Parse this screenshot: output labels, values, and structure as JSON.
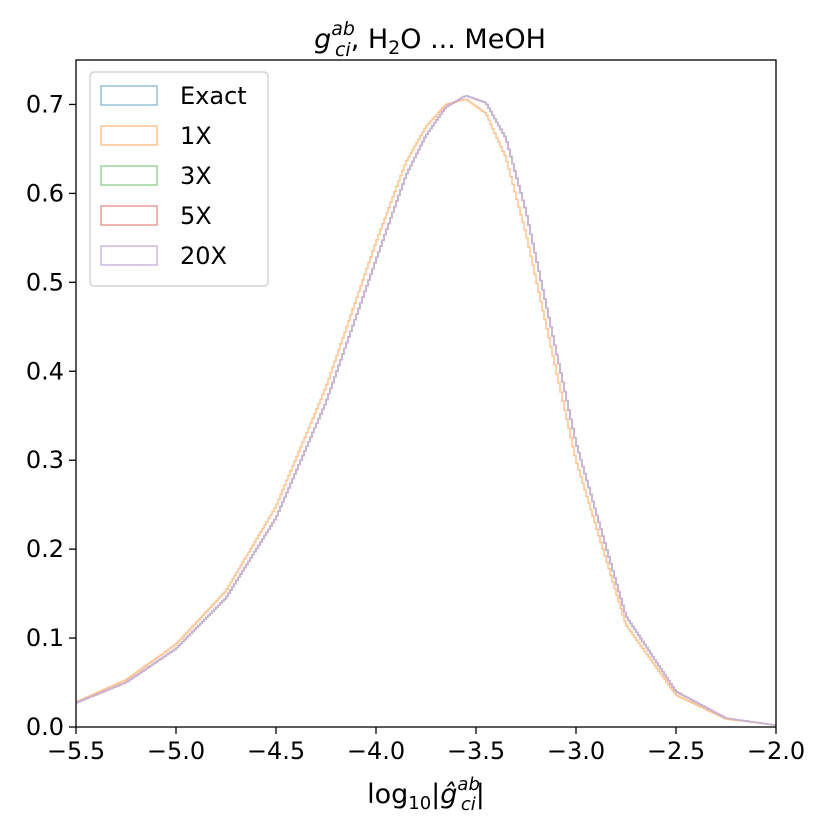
{
  "chart_data": {
    "type": "line",
    "style": "step-histogram",
    "title": {
      "main": "g",
      "main_sub": "ci",
      "main_sup": "ab",
      "rest_a": ", H",
      "rest_sub": "2",
      "rest_b": "O ... MeOH"
    },
    "xlabel": {
      "prefix": "log",
      "prefix_sub": "10",
      "bar_open": "|",
      "symbol": "ĝ",
      "symbol_sub": "ci",
      "symbol_sup": "ab",
      "bar_close": "|"
    },
    "ylabel": "",
    "xlim": [
      -5.5,
      -2.0
    ],
    "ylim": [
      0.0,
      0.75
    ],
    "xticks": [
      -5.5,
      -5.0,
      -4.5,
      -4.0,
      -3.5,
      -3.0,
      -2.5,
      -2.0
    ],
    "xtick_labels": [
      "−5.5",
      "−5.0",
      "−4.5",
      "−4.0",
      "−3.5",
      "−3.0",
      "−2.5",
      "−2.0"
    ],
    "yticks": [
      0.0,
      0.1,
      0.2,
      0.3,
      0.4,
      0.5,
      0.6,
      0.7
    ],
    "ytick_labels": [
      "0.0",
      "0.1",
      "0.2",
      "0.3",
      "0.4",
      "0.5",
      "0.6",
      "0.7"
    ],
    "grid": false,
    "legend_position": "top-left",
    "series": [
      {
        "name": "Exact",
        "color": "#8fbbd9",
        "x": [
          -5.5,
          -5.25,
          -5.0,
          -4.75,
          -4.5,
          -4.25,
          -4.0,
          -3.85,
          -3.75,
          -3.65,
          -3.55,
          -3.45,
          -3.35,
          -3.25,
          -3.0,
          -2.75,
          -2.5,
          -2.25,
          -2.0
        ],
        "y": [
          0.027,
          0.05,
          0.088,
          0.145,
          0.235,
          0.365,
          0.525,
          0.62,
          0.665,
          0.697,
          0.71,
          0.702,
          0.662,
          0.58,
          0.32,
          0.125,
          0.04,
          0.01,
          0.002
        ]
      },
      {
        "name": "1X",
        "color": "#ffbf86",
        "x": [
          -5.5,
          -5.25,
          -5.0,
          -4.75,
          -4.5,
          -4.25,
          -4.0,
          -3.85,
          -3.75,
          -3.65,
          -3.55,
          -3.45,
          -3.35,
          -3.25,
          -3.0,
          -2.75,
          -2.5,
          -2.25,
          -2.0
        ],
        "y": [
          0.028,
          0.053,
          0.093,
          0.153,
          0.248,
          0.382,
          0.545,
          0.635,
          0.675,
          0.7,
          0.706,
          0.69,
          0.64,
          0.555,
          0.3,
          0.115,
          0.036,
          0.009,
          0.002
        ]
      },
      {
        "name": "3X",
        "color": "#95cf95",
        "x": [
          -5.5,
          -5.25,
          -5.0,
          -4.75,
          -4.5,
          -4.25,
          -4.0,
          -3.85,
          -3.75,
          -3.65,
          -3.55,
          -3.45,
          -3.35,
          -3.25,
          -3.0,
          -2.75,
          -2.5,
          -2.25,
          -2.0
        ],
        "y": [
          0.027,
          0.05,
          0.088,
          0.145,
          0.235,
          0.365,
          0.525,
          0.62,
          0.665,
          0.697,
          0.71,
          0.702,
          0.662,
          0.58,
          0.32,
          0.125,
          0.04,
          0.01,
          0.002
        ]
      },
      {
        "name": "5X",
        "color": "#ea9393",
        "x": [
          -5.5,
          -5.25,
          -5.0,
          -4.75,
          -4.5,
          -4.25,
          -4.0,
          -3.85,
          -3.75,
          -3.65,
          -3.55,
          -3.45,
          -3.35,
          -3.25,
          -3.0,
          -2.75,
          -2.5,
          -2.25,
          -2.0
        ],
        "y": [
          0.027,
          0.05,
          0.088,
          0.145,
          0.235,
          0.365,
          0.525,
          0.62,
          0.665,
          0.697,
          0.71,
          0.702,
          0.662,
          0.58,
          0.32,
          0.125,
          0.04,
          0.01,
          0.002
        ]
      },
      {
        "name": "20X",
        "color": "#c9b3dc",
        "x": [
          -5.5,
          -5.25,
          -5.0,
          -4.75,
          -4.5,
          -4.25,
          -4.0,
          -3.85,
          -3.75,
          -3.65,
          -3.55,
          -3.45,
          -3.35,
          -3.25,
          -3.0,
          -2.75,
          -2.5,
          -2.25,
          -2.0
        ],
        "y": [
          0.027,
          0.05,
          0.088,
          0.145,
          0.235,
          0.365,
          0.525,
          0.62,
          0.665,
          0.697,
          0.71,
          0.702,
          0.662,
          0.58,
          0.32,
          0.125,
          0.04,
          0.01,
          0.002
        ]
      }
    ]
  }
}
